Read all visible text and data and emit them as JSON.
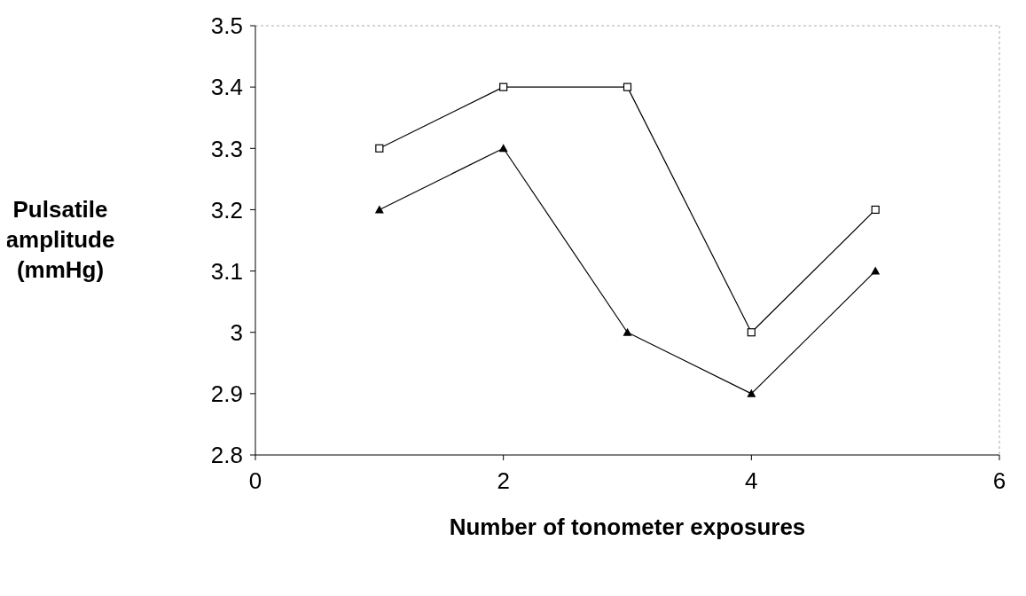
{
  "chart_data": {
    "type": "line",
    "xlabel": "Number of tonometer exposures",
    "ylabel": "Pulsatile amplitude (mmHg)",
    "x": [
      1,
      2,
      3,
      4,
      5
    ],
    "series": [
      {
        "color": "#000000",
        "marker": "square",
        "values": [
          3.3,
          3.4,
          3.4,
          3.0,
          3.2
        ]
      },
      {
        "color": "#000000",
        "marker": "triangle",
        "values": [
          3.2,
          3.3,
          3.0,
          2.9,
          3.1
        ]
      }
    ],
    "xlim": [
      0,
      6
    ],
    "xticks": [
      0,
      2,
      4,
      6
    ],
    "ylim": [
      2.8,
      3.5
    ],
    "yticks": [
      2.8,
      2.9,
      3,
      3.1,
      3.2,
      3.3,
      3.4,
      3.5
    ],
    "grid": false,
    "legend": false,
    "line_style": "solid"
  }
}
